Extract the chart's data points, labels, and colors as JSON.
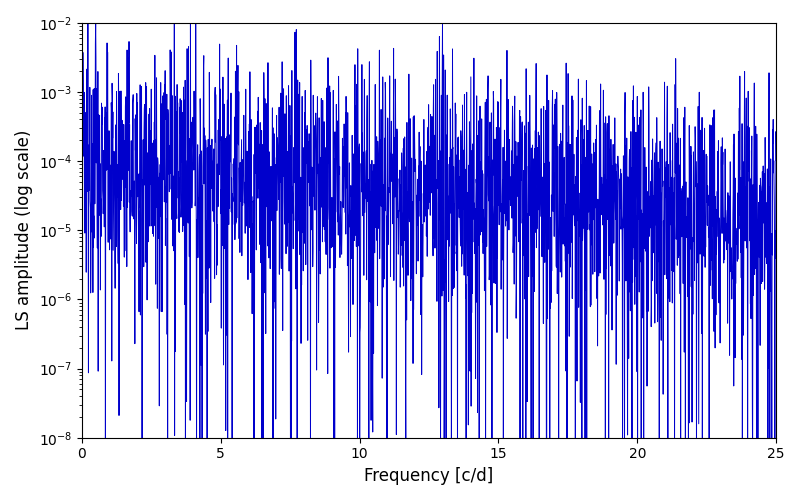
{
  "title": "",
  "xlabel": "Frequency [c/d]",
  "ylabel": "LS amplitude (log scale)",
  "xlim": [
    0,
    25
  ],
  "ylim": [
    1e-08,
    0.01
  ],
  "line_color": "#0000cc",
  "line_width": 0.7,
  "figsize": [
    8.0,
    5.0
  ],
  "dpi": 100,
  "seed": 12345,
  "n_points": 2500,
  "freq_max": 25.0,
  "noise_floor_log": -4.0,
  "noise_sigma": 0.8,
  "spike_down_prob": 0.12,
  "spike_down_scale": 2.5,
  "background_color": "#ffffff"
}
